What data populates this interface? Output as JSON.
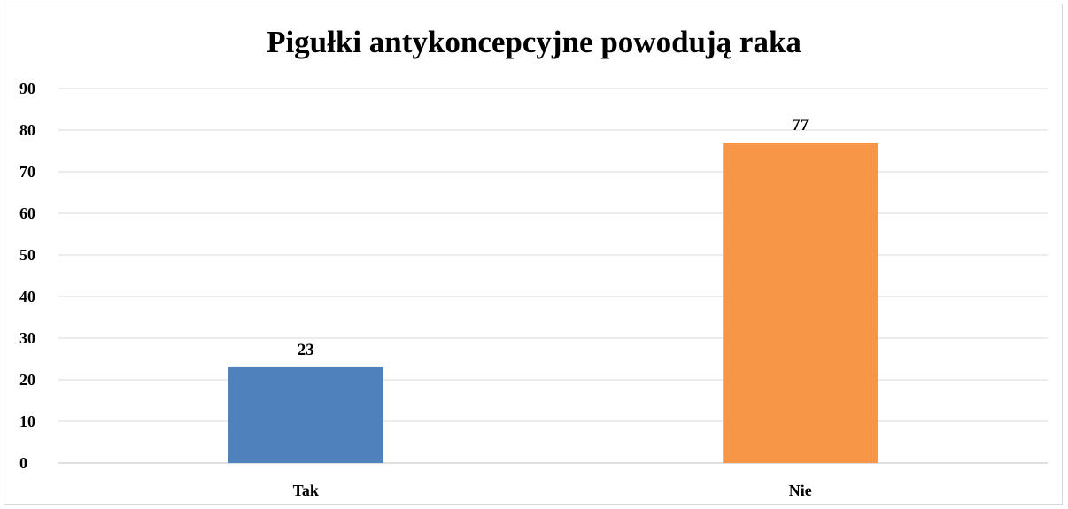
{
  "chart_data": {
    "type": "bar",
    "title": "Pigułki antykoncepcyjne powodują raka",
    "categories": [
      "Tak",
      "Nie"
    ],
    "values": [
      23,
      77
    ],
    "data_labels": [
      "23",
      "77"
    ],
    "colors": [
      "#4f81bd",
      "#f79646"
    ],
    "ylim": [
      0,
      90
    ],
    "yticks": [
      0,
      10,
      20,
      30,
      40,
      50,
      60,
      70,
      80,
      90
    ],
    "ytick_labels": [
      "0",
      "10",
      "20",
      "30",
      "40",
      "50",
      "60",
      "70",
      "80",
      "90"
    ],
    "grid": true,
    "gridline_color": "#d9d9d9",
    "xlabel": "",
    "ylabel": "",
    "legend": "none"
  }
}
